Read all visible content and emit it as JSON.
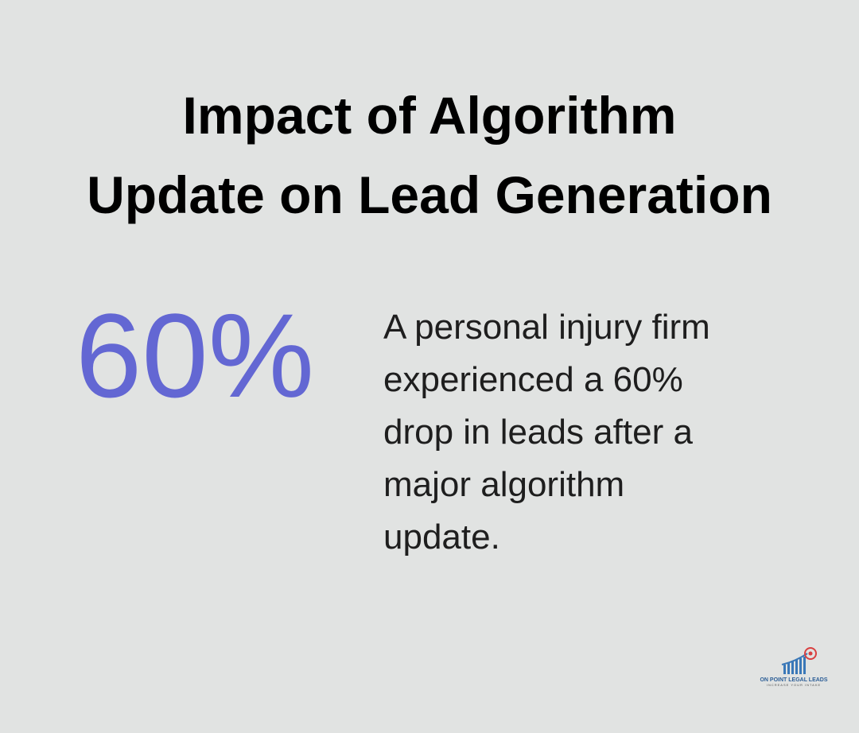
{
  "title": {
    "lines": [
      "Impact of Algorithm",
      "Update on Lead Generation"
    ]
  },
  "stat": "60%",
  "description": {
    "lines": [
      "A personal injury firm",
      "experienced a 60%",
      "drop in leads after a",
      "major algorithm",
      "update."
    ]
  },
  "logo": {
    "name": "ON POINT LEGAL LEADS",
    "tagline": "INCREASE YOUR INTAKE"
  }
}
